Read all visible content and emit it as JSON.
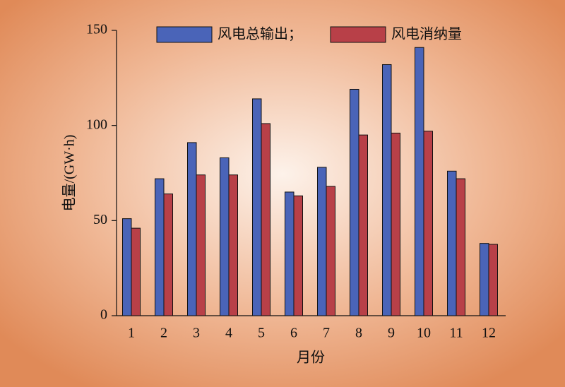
{
  "chart_data": {
    "type": "bar",
    "x_label": "月份",
    "y_label": "电量/(GW·h)",
    "categories": [
      "1",
      "2",
      "3",
      "4",
      "5",
      "6",
      "7",
      "8",
      "9",
      "10",
      "11",
      "12"
    ],
    "series": [
      {
        "name": "风电总输出；",
        "color": "#4a64b8",
        "values": [
          51,
          72,
          91,
          83,
          114,
          65,
          78,
          119,
          132,
          141,
          76,
          38
        ]
      },
      {
        "name": "风电消纳量",
        "color": "#b84048",
        "values": [
          46,
          64,
          74,
          74,
          101,
          63,
          68,
          95,
          96,
          97,
          72,
          37.5
        ]
      }
    ],
    "ylim": [
      0,
      150
    ],
    "yticks": [
      0,
      50,
      100,
      150
    ],
    "grid": false
  }
}
